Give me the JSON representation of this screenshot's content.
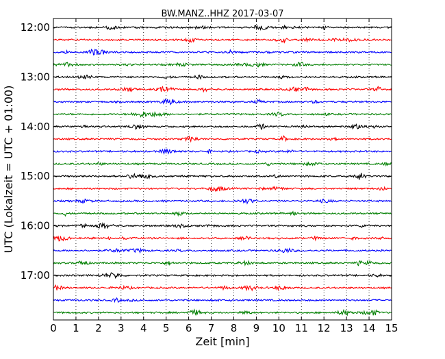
{
  "chart_data": {
    "type": "line",
    "title": "BW.MANZ..HHZ 2017-03-07",
    "xlabel": "Zeit  [min]",
    "ylabel": "UTC (Lokalzeit = UTC + 01:00)",
    "xlim": [
      0,
      15
    ],
    "x_ticks": [
      "0",
      "1",
      "2",
      "3",
      "4",
      "5",
      "6",
      "7",
      "8",
      "9",
      "10",
      "11",
      "12",
      "13",
      "14",
      "15"
    ],
    "y_tick_labels": [
      "12:00",
      "13:00",
      "14:00",
      "15:00",
      "16:00",
      "17:00"
    ],
    "trace_interval_min": 15,
    "grid": "vertical dotted lines at each minute",
    "series_colors": [
      "#000000",
      "#ff0000",
      "#0000ff",
      "#007f00"
    ],
    "traces": [
      {
        "start": "12:00",
        "color": "#000000"
      },
      {
        "start": "12:15",
        "color": "#ff0000"
      },
      {
        "start": "12:30",
        "color": "#0000ff"
      },
      {
        "start": "12:45",
        "color": "#007f00"
      },
      {
        "start": "13:00",
        "color": "#000000"
      },
      {
        "start": "13:15",
        "color": "#ff0000"
      },
      {
        "start": "13:30",
        "color": "#0000ff"
      },
      {
        "start": "13:45",
        "color": "#007f00"
      },
      {
        "start": "14:00",
        "color": "#000000"
      },
      {
        "start": "14:15",
        "color": "#ff0000"
      },
      {
        "start": "14:30",
        "color": "#0000ff"
      },
      {
        "start": "14:45",
        "color": "#007f00"
      },
      {
        "start": "15:00",
        "color": "#000000"
      },
      {
        "start": "15:15",
        "color": "#ff0000"
      },
      {
        "start": "15:30",
        "color": "#0000ff"
      },
      {
        "start": "15:45",
        "color": "#007f00"
      },
      {
        "start": "16:00",
        "color": "#000000"
      },
      {
        "start": "16:15",
        "color": "#ff0000"
      },
      {
        "start": "16:30",
        "color": "#0000ff"
      },
      {
        "start": "16:45",
        "color": "#007f00"
      },
      {
        "start": "17:00",
        "color": "#000000"
      },
      {
        "start": "17:15",
        "color": "#ff0000"
      },
      {
        "start": "17:30",
        "color": "#0000ff"
      },
      {
        "start": "17:45",
        "color": "#007f00"
      }
    ]
  }
}
